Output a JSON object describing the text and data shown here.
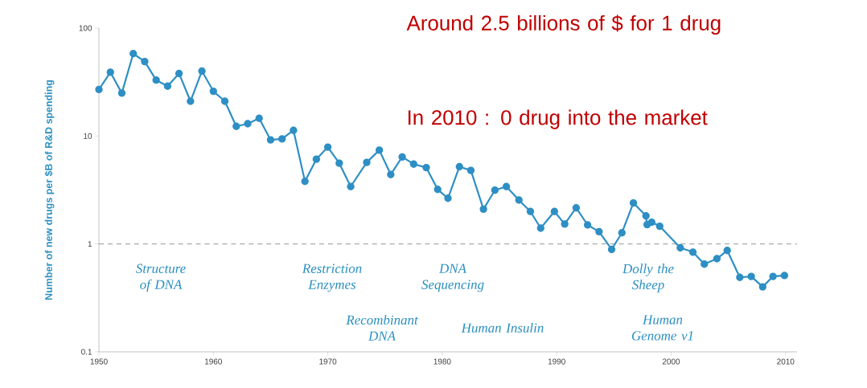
{
  "chart_data": {
    "type": "line",
    "ylabel": "Number of new drugs per $B of R&D spending",
    "x": [
      1950,
      1951,
      1952,
      1953,
      1954,
      1955,
      1956,
      1957,
      1958,
      1959,
      1960,
      1961,
      1962,
      1963,
      1964,
      1965,
      1966,
      1967,
      1968,
      1969,
      1970,
      1971,
      1972,
      1973.4,
      1974.5,
      1975.5,
      1976.5,
      1977.5,
      1978.6,
      1979.6,
      1980.5,
      1981.5,
      1982.5,
      1983.6,
      1984.6,
      1985.6,
      1986.7,
      1987.7,
      1988.6,
      1989.8,
      1990.7,
      1991.7,
      1992.7,
      1993.7,
      1994.8,
      1995.7,
      1996.7,
      1997.8,
      1997.9,
      1998.3,
      1999,
      2000.8,
      2001.9,
      2002.9,
      2004,
      2004.9,
      2006,
      2007,
      2008,
      2008.9,
      2009.9
    ],
    "series": [
      {
        "color": "#2e8fc4",
        "values": [
          27,
          39,
          25,
          58,
          49,
          33,
          29,
          38,
          21,
          40,
          26,
          21,
          12.3,
          13,
          14.6,
          9.2,
          9.4,
          11.3,
          3.8,
          6.1,
          7.9,
          5.6,
          3.4,
          5.7,
          7.4,
          4.4,
          6.4,
          5.5,
          5.1,
          3.2,
          2.65,
          5.2,
          4.8,
          2.1,
          3.15,
          3.4,
          2.55,
          2.0,
          1.4,
          2.0,
          1.53,
          2.16,
          1.5,
          1.3,
          0.89,
          1.27,
          2.4,
          1.82,
          1.51,
          1.59,
          1.46,
          0.92,
          0.84,
          0.65,
          0.73,
          0.87,
          0.49,
          0.5,
          0.4,
          0.5,
          0.51
        ]
      }
    ],
    "log": "y",
    "marker": "circle",
    "line_style": "solid",
    "xlim": [
      1950,
      2011
    ],
    "xticks": [
      1950,
      1960,
      1970,
      1980,
      1990,
      2000,
      2010
    ],
    "ylim": [
      0.1,
      100
    ],
    "yticks": [
      0.1,
      1,
      10,
      100
    ],
    "ref_lines": [
      {
        "axis": "y",
        "value": 1,
        "color": "#aaaaaa",
        "line_style": "dashed"
      }
    ],
    "annotations": [
      "Around 2.5 billions of $ for 1 drug",
      "In 2010 : 0 drug into the market",
      "Structure of DNA",
      "Restriction Enzymes",
      "Recombinant DNA",
      "DNA Sequencing",
      "Human Insulin",
      "Dolly the Sheep",
      "Human Genome v1"
    ]
  }
}
